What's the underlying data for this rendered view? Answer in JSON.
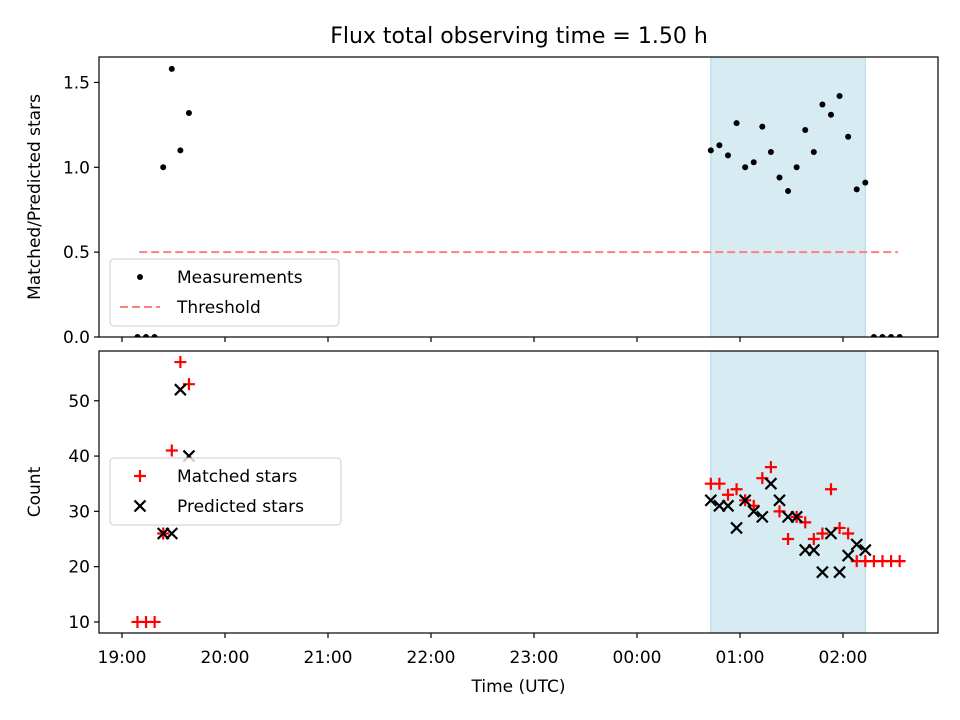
{
  "figure": {
    "title": "Flux total observing time = 1.50 h"
  },
  "chart_data": [
    {
      "type": "scatter",
      "ylabel": "Matched/Predicted stars",
      "xlabel": "",
      "x_tick_labels": [
        "19:00",
        "20:00",
        "21:00",
        "22:00",
        "23:00",
        "00:00",
        "01:00",
        "02:00"
      ],
      "ylim": [
        0.0,
        1.65
      ],
      "y_ticks": [
        0.0,
        0.5,
        1.0,
        1.5
      ],
      "y_tick_labels": [
        "0.0",
        "0.5",
        "1.0",
        "1.5"
      ],
      "shaded_span": [
        "00:43",
        "02:13"
      ],
      "shaded_color": "#add8e6",
      "legend_position": "lower-left",
      "series": [
        {
          "name": "Measurements",
          "marker": "dot",
          "color": "#000000",
          "points": [
            [
              "19:09",
              0.0
            ],
            [
              "19:14",
              0.0
            ],
            [
              "19:19",
              0.0
            ],
            [
              "19:24",
              1.0
            ],
            [
              "19:29",
              1.58
            ],
            [
              "19:34",
              1.1
            ],
            [
              "19:39",
              1.32
            ],
            [
              "00:43",
              1.1
            ],
            [
              "00:48",
              1.13
            ],
            [
              "00:53",
              1.07
            ],
            [
              "00:58",
              1.26
            ],
            [
              "01:03",
              1.0
            ],
            [
              "01:08",
              1.03
            ],
            [
              "01:13",
              1.24
            ],
            [
              "01:18",
              1.09
            ],
            [
              "01:23",
              0.94
            ],
            [
              "01:28",
              0.86
            ],
            [
              "01:33",
              1.0
            ],
            [
              "01:38",
              1.22
            ],
            [
              "01:43",
              1.09
            ],
            [
              "01:48",
              1.37
            ],
            [
              "01:53",
              1.31
            ],
            [
              "01:58",
              1.42
            ],
            [
              "02:03",
              1.18
            ],
            [
              "02:08",
              0.87
            ],
            [
              "02:13",
              0.91
            ],
            [
              "02:18",
              0.0
            ],
            [
              "02:23",
              0.0
            ],
            [
              "02:28",
              0.0
            ],
            [
              "02:33",
              0.0
            ]
          ]
        },
        {
          "name": "Threshold",
          "marker": "dashed-line",
          "color": "#ff7f7f",
          "points": [
            [
              "19:10",
              0.5
            ],
            [
              "02:32",
              0.5
            ]
          ]
        }
      ]
    },
    {
      "type": "scatter",
      "ylabel": "Count",
      "xlabel": "Time (UTC)",
      "x_tick_labels": [
        "19:00",
        "20:00",
        "21:00",
        "22:00",
        "23:00",
        "00:00",
        "01:00",
        "02:00"
      ],
      "ylim": [
        8,
        59
      ],
      "y_ticks": [
        10,
        20,
        30,
        40,
        50
      ],
      "y_tick_labels": [
        "10",
        "20",
        "30",
        "40",
        "50"
      ],
      "shaded_span": [
        "00:43",
        "02:13"
      ],
      "shaded_color": "#add8e6",
      "legend_position": "center-left",
      "series": [
        {
          "name": "Matched stars",
          "marker": "plus",
          "color": "#ff0000",
          "points": [
            [
              "19:09",
              10
            ],
            [
              "19:14",
              10
            ],
            [
              "19:19",
              10
            ],
            [
              "19:24",
              26
            ],
            [
              "19:29",
              41
            ],
            [
              "19:34",
              57
            ],
            [
              "19:39",
              53
            ],
            [
              "00:43",
              35
            ],
            [
              "00:48",
              35
            ],
            [
              "00:53",
              33
            ],
            [
              "00:58",
              34
            ],
            [
              "01:03",
              32
            ],
            [
              "01:08",
              31
            ],
            [
              "01:13",
              36
            ],
            [
              "01:18",
              38
            ],
            [
              "01:23",
              30
            ],
            [
              "01:28",
              25
            ],
            [
              "01:33",
              29
            ],
            [
              "01:38",
              28
            ],
            [
              "01:43",
              25
            ],
            [
              "01:48",
              26
            ],
            [
              "01:53",
              34
            ],
            [
              "01:58",
              27
            ],
            [
              "02:03",
              26
            ],
            [
              "02:08",
              21
            ],
            [
              "02:13",
              21
            ],
            [
              "02:18",
              21
            ],
            [
              "02:23",
              21
            ],
            [
              "02:28",
              21
            ],
            [
              "02:33",
              21
            ]
          ]
        },
        {
          "name": "Predicted stars",
          "marker": "x",
          "color": "#000000",
          "points": [
            [
              "19:24",
              26
            ],
            [
              "19:29",
              26
            ],
            [
              "19:34",
              52
            ],
            [
              "19:39",
              40
            ],
            [
              "00:43",
              32
            ],
            [
              "00:48",
              31
            ],
            [
              "00:53",
              31
            ],
            [
              "00:58",
              27
            ],
            [
              "01:03",
              32
            ],
            [
              "01:08",
              30
            ],
            [
              "01:13",
              29
            ],
            [
              "01:18",
              35
            ],
            [
              "01:23",
              32
            ],
            [
              "01:28",
              29
            ],
            [
              "01:33",
              29
            ],
            [
              "01:38",
              23
            ],
            [
              "01:43",
              23
            ],
            [
              "01:48",
              19
            ],
            [
              "01:53",
              26
            ],
            [
              "01:58",
              19
            ],
            [
              "02:03",
              22
            ],
            [
              "02:08",
              24
            ],
            [
              "02:13",
              23
            ]
          ]
        }
      ]
    }
  ]
}
